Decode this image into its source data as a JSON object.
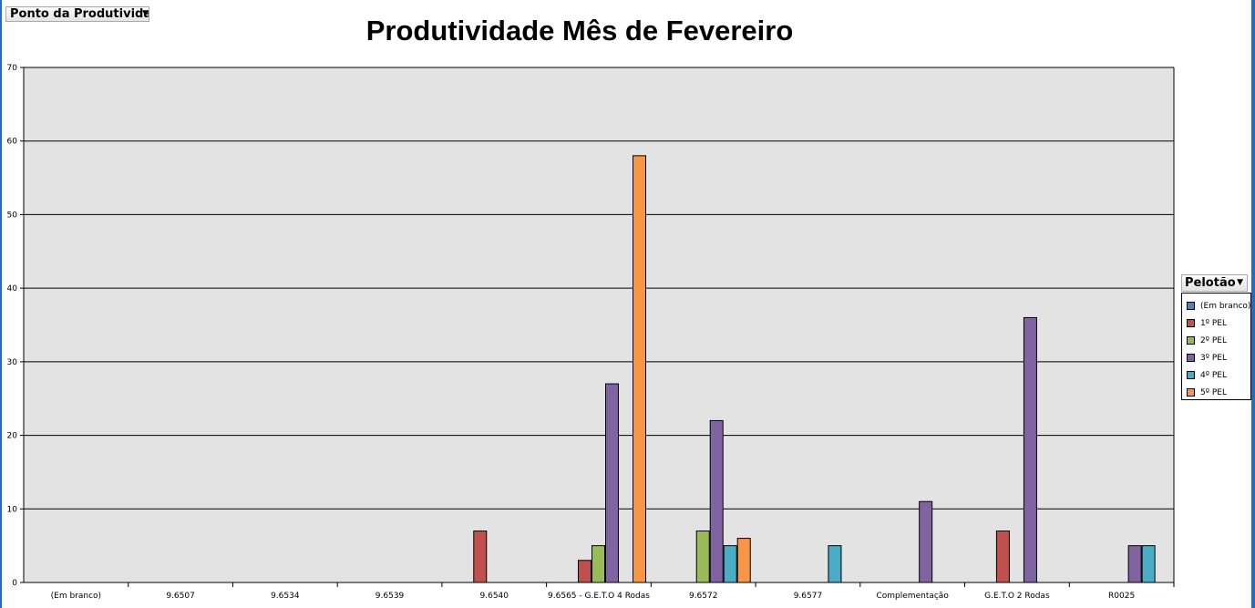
{
  "page_field": {
    "label": "Ponto da Produtividade"
  },
  "legend_field": {
    "label": "Pelotão"
  },
  "chart_data": {
    "type": "bar",
    "title": "Produtividade Mês de Fevereiro",
    "xlabel": "",
    "ylabel": "",
    "ylim": [
      0,
      70
    ],
    "yticks": [
      0,
      10,
      20,
      30,
      40,
      50,
      60,
      70
    ],
    "grid": true,
    "legend_position": "right",
    "categories": [
      "(Em branco)",
      "9.6507",
      "9.6534",
      "9.6539",
      "9.6540",
      "9.6565 - G.E.T.O 4 Rodas",
      "9.6572",
      "9.6577",
      "Complementação",
      "G.E.T.O 2 Rodas",
      "R0025"
    ],
    "series": [
      {
        "name": "(Em branco)",
        "color": "#4f81bd",
        "values": [
          null,
          null,
          null,
          null,
          null,
          null,
          null,
          null,
          null,
          null,
          null
        ]
      },
      {
        "name": "1º PEL",
        "color": "#c0504d",
        "values": [
          null,
          null,
          null,
          null,
          7,
          3,
          null,
          null,
          null,
          7,
          null
        ]
      },
      {
        "name": "2º PEL",
        "color": "#9bbb59",
        "values": [
          null,
          null,
          null,
          null,
          null,
          5,
          7,
          null,
          null,
          null,
          null
        ]
      },
      {
        "name": "3º PEL",
        "color": "#8064a2",
        "values": [
          null,
          null,
          null,
          null,
          null,
          27,
          22,
          null,
          11,
          36,
          5
        ]
      },
      {
        "name": "4º PEL",
        "color": "#4bacc6",
        "values": [
          null,
          null,
          null,
          null,
          null,
          null,
          5,
          5,
          null,
          null,
          5
        ]
      },
      {
        "name": "5º PEL",
        "color": "#f79646",
        "values": [
          null,
          null,
          null,
          null,
          null,
          58,
          6,
          null,
          null,
          null,
          null
        ]
      }
    ]
  }
}
